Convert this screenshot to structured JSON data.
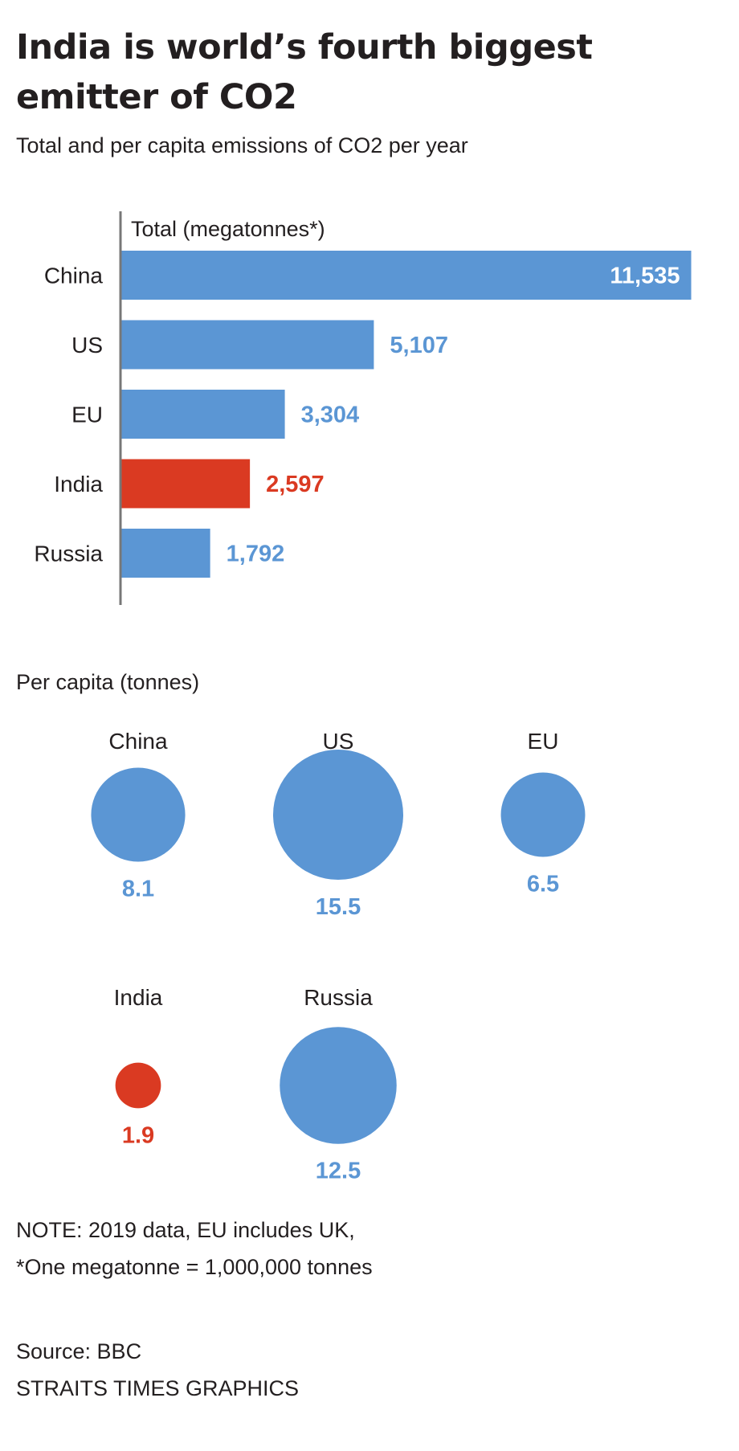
{
  "title": "India is world’s fourth biggest emitter of CO2",
  "subtitle": "Total and per capita emissions of CO2 per year",
  "colors": {
    "default": "#5b96d4",
    "highlight": "#da3a22",
    "axis": "#777777",
    "text": "#231f20"
  },
  "chart_data": [
    {
      "type": "bar",
      "orientation": "horizontal",
      "title": "Total (megatonnes*)",
      "categories": [
        "China",
        "US",
        "EU",
        "India",
        "Russia"
      ],
      "values": [
        11535,
        5107,
        3304,
        2597,
        1792
      ],
      "value_labels": [
        "11,535",
        "5,107",
        "3,304",
        "2,597",
        "1,792"
      ],
      "highlight": "India",
      "xlim": [
        0,
        11535
      ]
    },
    {
      "type": "scatter",
      "variant": "proportional-circles",
      "title": "Per capita (tonnes)",
      "categories": [
        "China",
        "US",
        "EU",
        "India",
        "Russia"
      ],
      "values": [
        8.1,
        15.5,
        6.5,
        1.9,
        12.5
      ],
      "value_labels": [
        "8.1",
        "15.5",
        "6.5",
        "1.9",
        "12.5"
      ],
      "highlight": "India"
    }
  ],
  "notes": {
    "line1": "NOTE: 2019 data, EU includes UK,",
    "line2": "*One megatonne = 1,000,000 tonnes"
  },
  "source": {
    "line1": "Source: BBC",
    "line2": "STRAITS TIMES GRAPHICS"
  }
}
